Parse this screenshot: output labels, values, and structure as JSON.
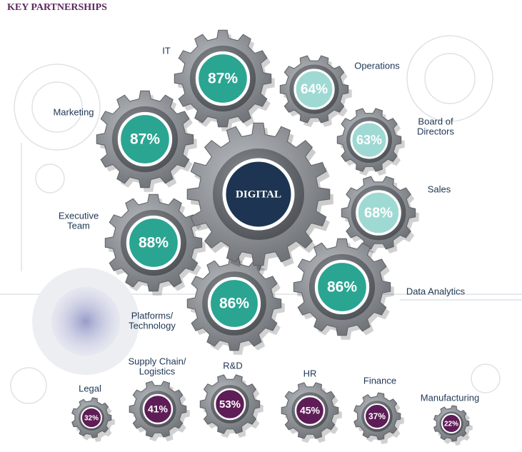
{
  "title": "KEY PARTNERSHIPS",
  "center": {
    "label": "DIGITAL"
  },
  "nodes": [
    {
      "label": [
        "IT"
      ],
      "value": "87%"
    },
    {
      "label": [
        "Marketing"
      ],
      "value": "87%"
    },
    {
      "label": [
        "Operations"
      ],
      "value": "64%"
    },
    {
      "label": [
        "Board of",
        "Directors"
      ],
      "value": "63%"
    },
    {
      "label": [
        "Sales"
      ],
      "value": "68%"
    },
    {
      "label": [
        "Executive",
        "Team"
      ],
      "value": "88%"
    },
    {
      "label": [
        "Platforms/",
        "Technology"
      ],
      "value": "86%"
    },
    {
      "label": [
        "Data Analytics"
      ],
      "value": "86%"
    }
  ],
  "minor_nodes": [
    {
      "label": [
        "Legal"
      ],
      "value": "32%"
    },
    {
      "label": [
        "Supply Chain/",
        "Logistics"
      ],
      "value": "41%"
    },
    {
      "label": [
        "R&D"
      ],
      "value": "53%"
    },
    {
      "label": [
        "HR"
      ],
      "value": "45%"
    },
    {
      "label": [
        "Finance"
      ],
      "value": "37%"
    },
    {
      "label": [
        "Manufacturing"
      ],
      "value": "22%"
    }
  ]
}
